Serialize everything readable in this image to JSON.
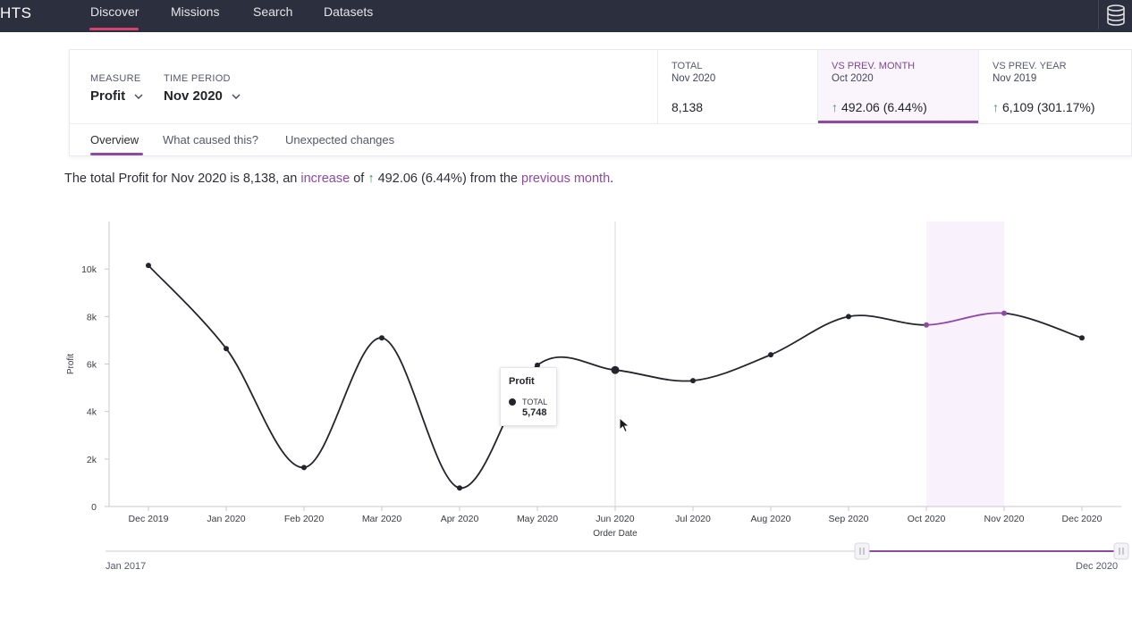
{
  "nav": {
    "brand": "HTS",
    "items": [
      "Discover",
      "Missions",
      "Search",
      "Datasets"
    ],
    "active": "Discover"
  },
  "header": {
    "measure_label": "MEASURE",
    "measure_value": "Profit",
    "period_label": "TIME PERIOD",
    "period_value": "Nov 2020",
    "stats": [
      {
        "title": "TOTAL",
        "sub": "Nov 2020",
        "value": "8,138"
      },
      {
        "title": "VS PREV. MONTH",
        "sub": "Oct 2020",
        "value": "492.06 (6.44%)",
        "arrow": "↑"
      },
      {
        "title": "VS PREV. YEAR",
        "sub": "Nov 2019",
        "value": "6,109 (301.17%)",
        "arrow": "↑"
      }
    ]
  },
  "tabs": [
    "Overview",
    "What caused this?",
    "Unexpected changes"
  ],
  "summary": {
    "p1": "The total Profit for Nov 2020 is 8,138, an ",
    "increase": "increase",
    "p2": " of ",
    "arrow": "↑",
    "p3": " 492.06 (6.44%) from the ",
    "prev": "previous month",
    "p4": "."
  },
  "chart_data": {
    "type": "line",
    "xlabel": "Order Date",
    "ylabel": "Profit",
    "categories": [
      "Dec 2019",
      "Jan 2020",
      "Feb 2020",
      "Mar 2020",
      "Apr 2020",
      "May 2020",
      "Jun 2020",
      "Jul 2020",
      "Aug 2020",
      "Sep 2020",
      "Oct 2020",
      "Nov 2020",
      "Dec 2020"
    ],
    "series": [
      {
        "values": [
          10150,
          6650,
          1640,
          7100,
          780,
          5950,
          5748,
          5300,
          6390,
          8000,
          7646,
          8138,
          7100
        ]
      }
    ],
    "yticks": [
      0,
      2000,
      4000,
      6000,
      8000,
      10000
    ],
    "ytick_labels": [
      "0",
      "2k",
      "4k",
      "6k",
      "8k",
      "10k"
    ],
    "ylim": [
      0,
      12000
    ],
    "highlight_range": [
      "Oct 2020",
      "Nov 2020"
    ],
    "hover_category": "Jun 2020",
    "highlight_color": "#8e4aa3",
    "line_color": "#23242c",
    "grid": false
  },
  "tooltip": {
    "title": "Profit",
    "label": "TOTAL",
    "value": "5,748"
  },
  "range": {
    "start": "Jan 2017",
    "end": "Dec 2020"
  }
}
